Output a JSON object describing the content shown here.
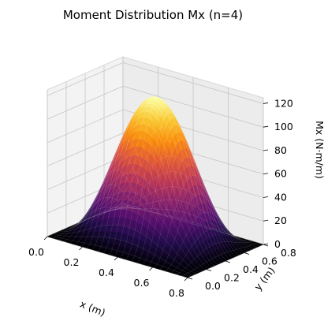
{
  "chart_data": {
    "type": "surface3d",
    "title": "Moment Distribution Mx (n=4)",
    "xlabel": "x (m)",
    "ylabel": "y (m)",
    "zlabel": "Mx (N·m/m)",
    "xlim": [
      0,
      0.8
    ],
    "ylim": [
      0,
      0.8
    ],
    "zlim": [
      0,
      125
    ],
    "x_ticks": [
      "0.0",
      "0.2",
      "0.4",
      "0.6",
      "0.8"
    ],
    "y_ticks": [
      "0.0",
      "0.2",
      "0.4",
      "0.6",
      "0.8"
    ],
    "z_ticks": [
      "0",
      "20",
      "40",
      "60",
      "80",
      "100",
      "120"
    ],
    "peak": {
      "x": 0.4,
      "y": 0.4,
      "value": 122
    },
    "edge_value": 0,
    "grid_resolution": 50,
    "colormap": "inferno",
    "grid": true
  }
}
